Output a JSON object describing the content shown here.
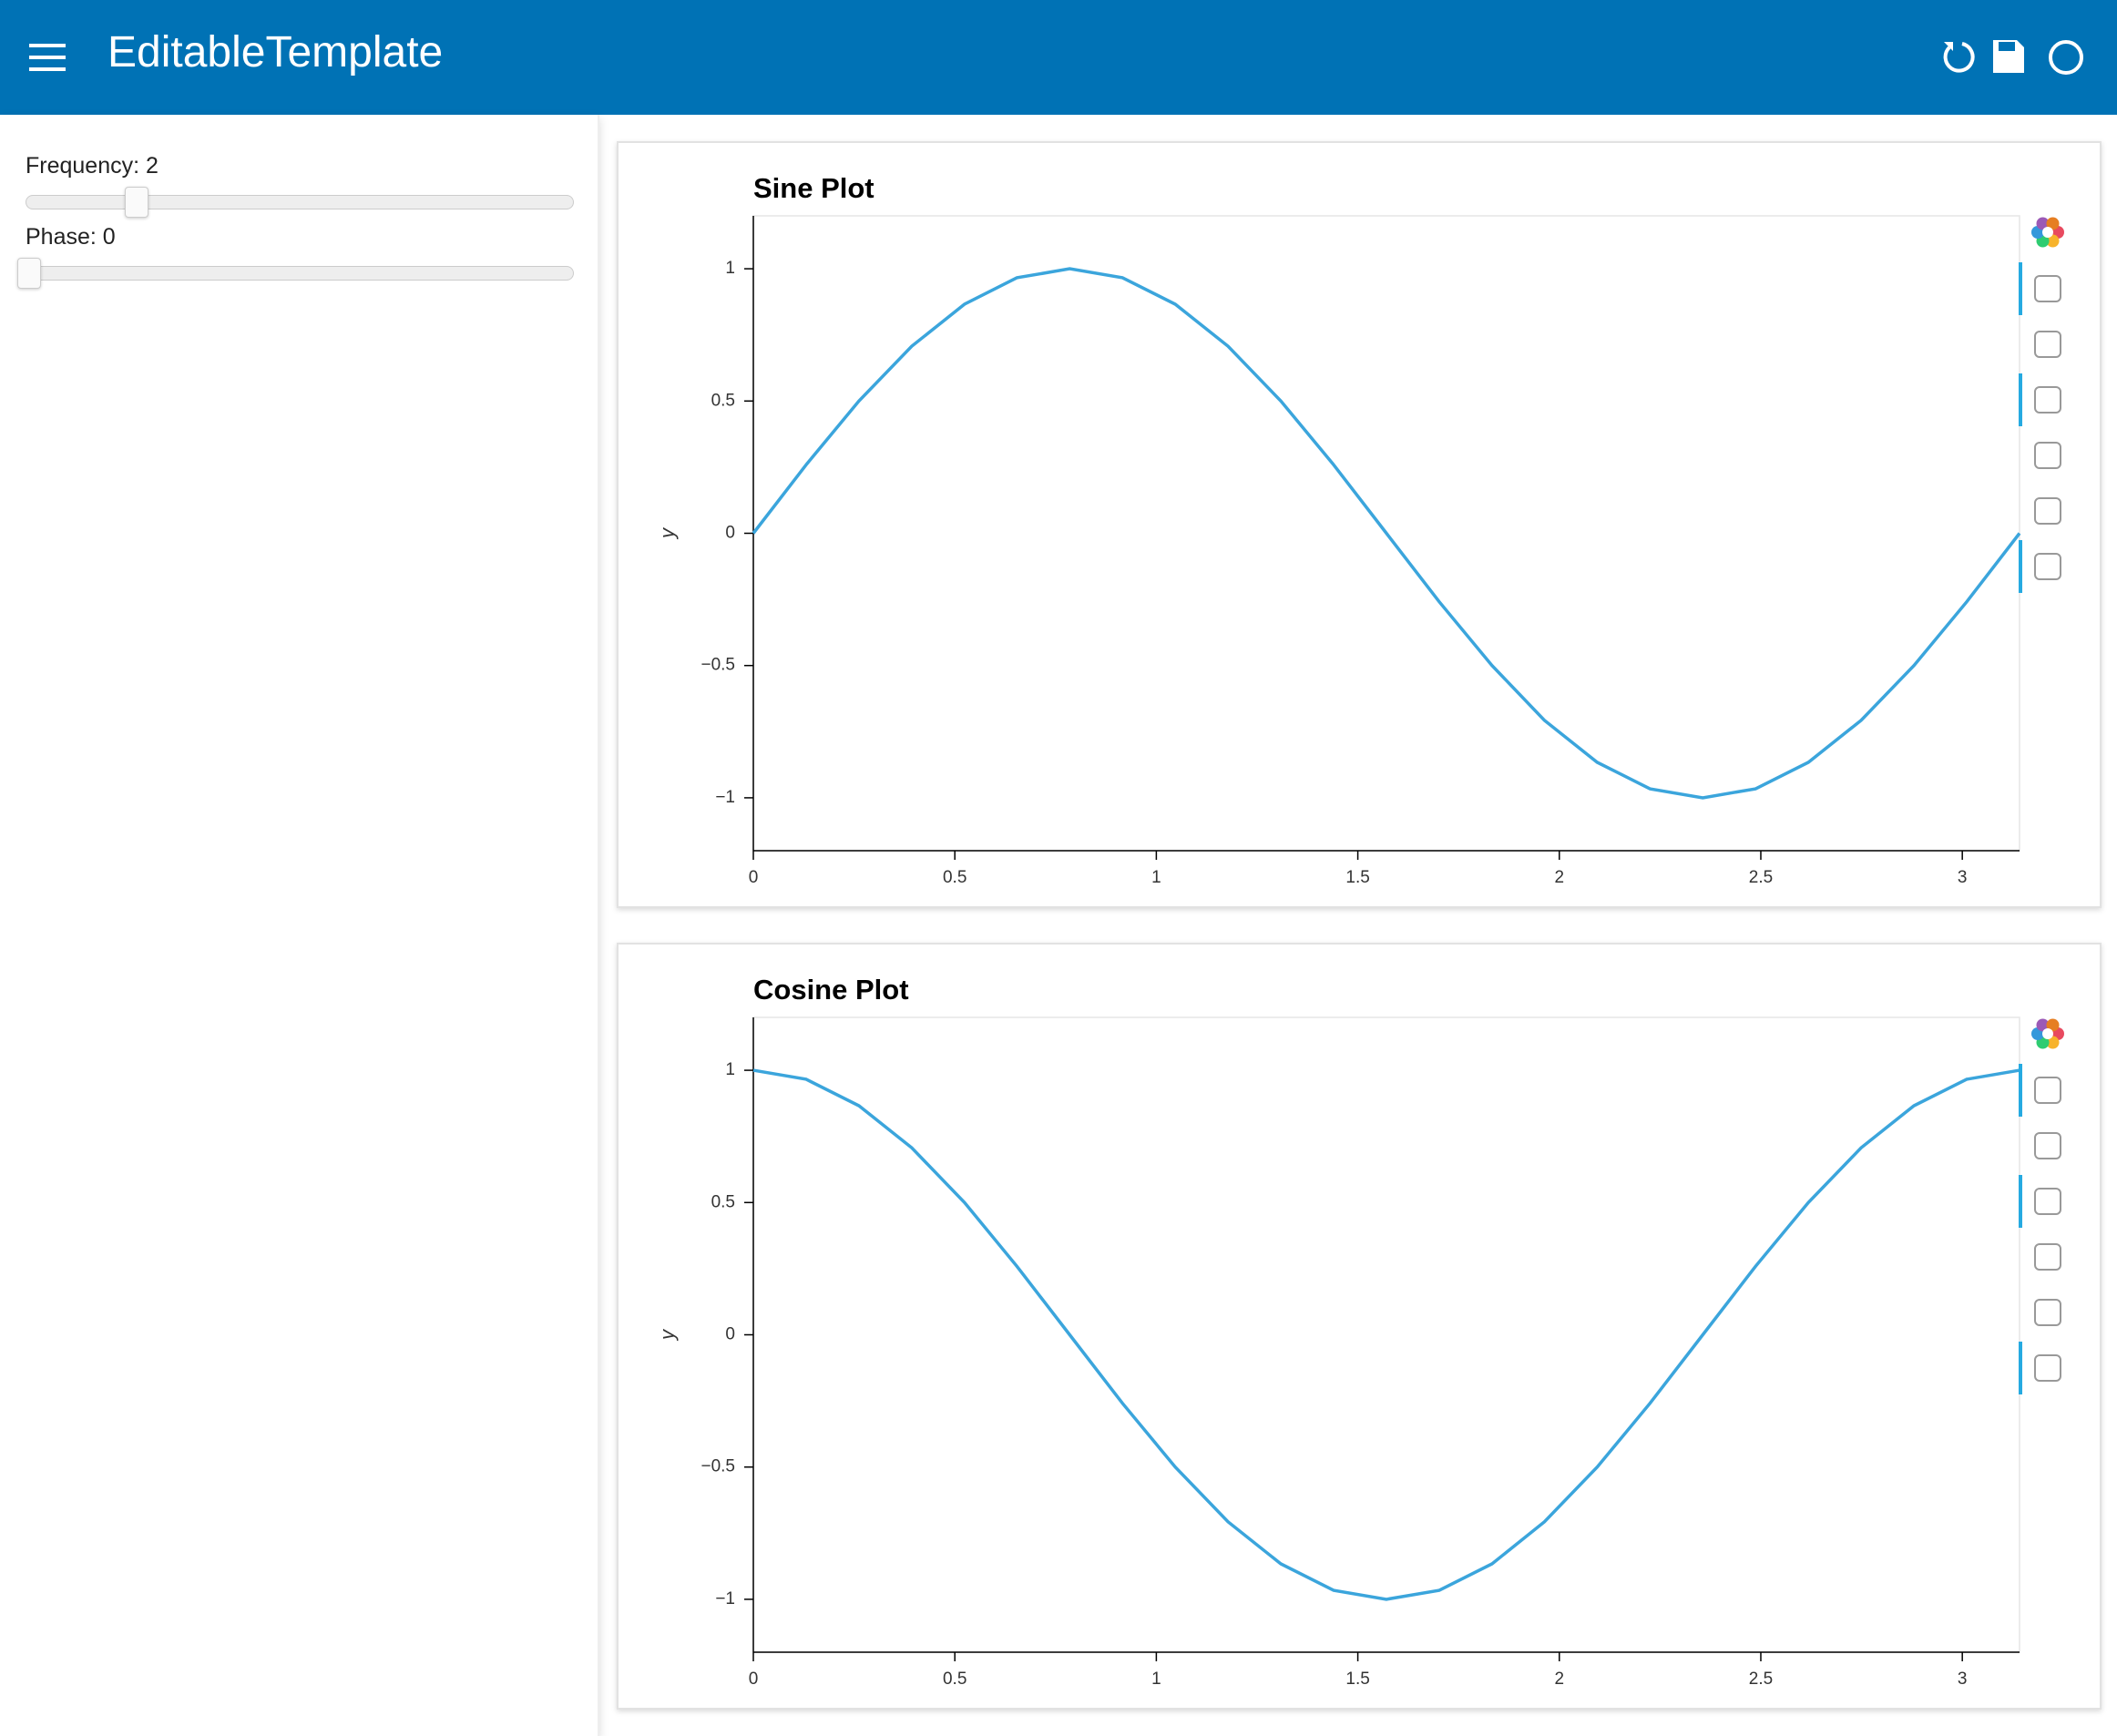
{
  "header": {
    "title": "EditableTemplate"
  },
  "sidebar": {
    "widgets": [
      {
        "label": "Frequency: 2"
      },
      {
        "label": "Phase: 0"
      }
    ]
  },
  "chart_data": [
    {
      "type": "line",
      "title": "Sine Plot",
      "y_label": "y",
      "color": "#3ba5dc",
      "x": [
        0,
        0.131,
        0.262,
        0.393,
        0.524,
        0.654,
        0.785,
        0.916,
        1.047,
        1.178,
        1.309,
        1.44,
        1.571,
        1.702,
        1.833,
        1.963,
        2.094,
        2.225,
        2.356,
        2.487,
        2.618,
        2.749,
        2.88,
        3.011,
        3.142
      ],
      "values": [
        0,
        0.259,
        0.5,
        0.707,
        0.866,
        0.966,
        1,
        0.966,
        0.866,
        0.707,
        0.5,
        0.259,
        0,
        -0.259,
        -0.5,
        -0.707,
        -0.866,
        -0.966,
        -1,
        -0.966,
        -0.866,
        -0.707,
        -0.5,
        -0.259,
        0
      ],
      "xlim": [
        0,
        3.142
      ],
      "ylim": [
        -1.2,
        1.2
      ],
      "xticks": [
        0,
        0.5,
        1,
        1.5,
        2,
        2.5,
        3
      ],
      "yticks": [
        {
          "value": -1,
          "label": "−1"
        },
        {
          "value": -0.5,
          "label": "−0.5"
        },
        0,
        0.5,
        1
      ]
    },
    {
      "type": "line",
      "title": "Cosine Plot",
      "y_label": "y",
      "color": "#3ba5dc",
      "x": [
        0,
        0.131,
        0.262,
        0.393,
        0.524,
        0.654,
        0.785,
        0.916,
        1.047,
        1.178,
        1.309,
        1.44,
        1.571,
        1.702,
        1.833,
        1.963,
        2.094,
        2.225,
        2.356,
        2.487,
        2.618,
        2.749,
        2.88,
        3.011,
        3.142
      ],
      "values": [
        1,
        0.966,
        0.866,
        0.707,
        0.5,
        0.259,
        0,
        -0.259,
        -0.5,
        -0.707,
        -0.866,
        -0.966,
        -1,
        -0.966,
        -0.866,
        -0.707,
        -0.5,
        -0.259,
        0,
        0.259,
        0.5,
        0.707,
        0.866,
        0.966,
        1
      ],
      "xlim": [
        0,
        3.142
      ],
      "ylim": [
        -1.2,
        1.2
      ],
      "xticks": [
        0,
        0.5,
        1,
        1.5,
        2,
        2.5,
        3
      ],
      "yticks": [
        {
          "value": -1,
          "label": "−1"
        },
        {
          "value": -0.5,
          "label": "−0.5"
        },
        0,
        0.5,
        1
      ]
    }
  ]
}
